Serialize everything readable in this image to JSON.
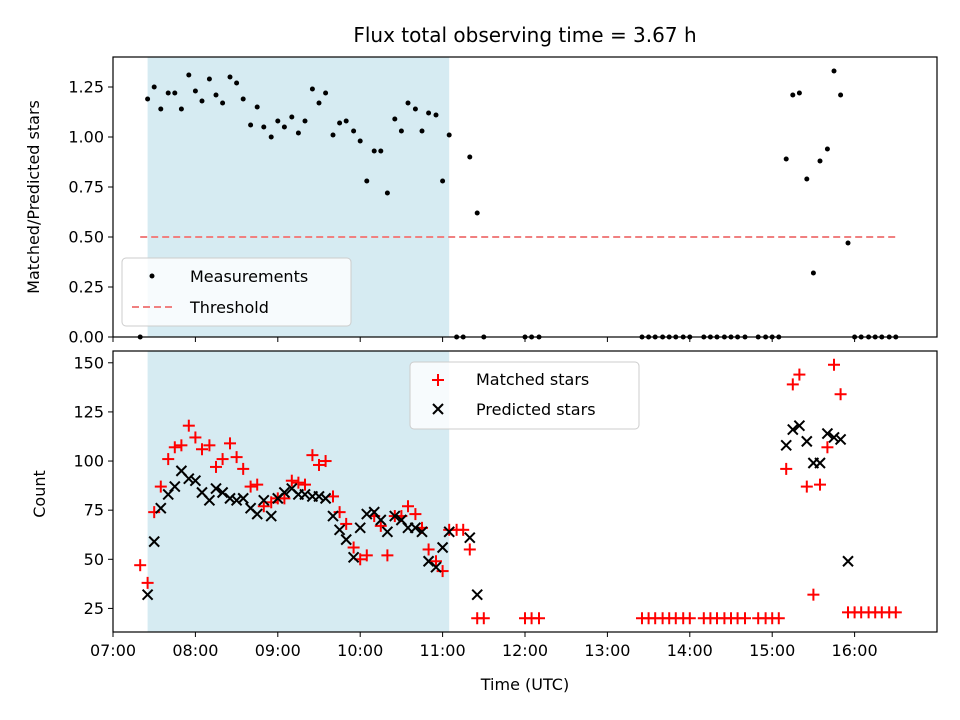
{
  "chart_data": [
    {
      "type": "scatter",
      "panel": "top",
      "title": "Flux total observing time = 3.67 h",
      "xlabel": "",
      "ylabel": "Matched/Predicted stars",
      "xlim": [
        7.0,
        17.0
      ],
      "ylim": [
        0.0,
        1.4
      ],
      "yticks": [
        0.0,
        0.25,
        0.5,
        0.75,
        1.0,
        1.25
      ],
      "ytick_labels": [
        "0.00",
        "0.25",
        "0.50",
        "0.75",
        "1.00",
        "1.25"
      ],
      "shaded_interval": [
        7.42,
        11.08
      ],
      "threshold": {
        "value": 0.5,
        "x_range": [
          7.33,
          16.5
        ],
        "color": "#f08080"
      },
      "legend": {
        "position": "lower-left",
        "entries": [
          "Measurements",
          "Threshold"
        ]
      },
      "series": [
        {
          "name": "Measurements",
          "color": "#000000",
          "x": [
            7.33,
            7.42,
            7.5,
            7.58,
            7.67,
            7.75,
            7.83,
            7.92,
            8.0,
            8.08,
            8.17,
            8.25,
            8.33,
            8.42,
            8.5,
            8.58,
            8.67,
            8.75,
            8.83,
            8.92,
            9.0,
            9.08,
            9.17,
            9.25,
            9.33,
            9.42,
            9.5,
            9.58,
            9.67,
            9.75,
            9.83,
            9.92,
            10.0,
            10.08,
            10.17,
            10.25,
            10.33,
            10.42,
            10.5,
            10.58,
            10.67,
            10.75,
            10.83,
            10.92,
            11.0,
            11.08,
            11.17,
            11.25,
            11.33,
            11.42,
            11.5,
            12.0,
            12.08,
            12.17,
            13.42,
            13.5,
            13.58,
            13.67,
            13.75,
            13.83,
            13.92,
            14.0,
            14.17,
            14.25,
            14.33,
            14.42,
            14.5,
            14.58,
            14.67,
            14.83,
            14.92,
            15.0,
            15.08,
            15.17,
            15.25,
            15.33,
            15.42,
            15.5,
            15.58,
            15.67,
            15.75,
            15.83,
            15.92,
            16.0,
            16.08,
            16.17,
            16.25,
            16.33,
            16.42,
            16.5
          ],
          "y": [
            0.0,
            1.19,
            1.25,
            1.14,
            1.22,
            1.22,
            1.14,
            1.31,
            1.23,
            1.18,
            1.29,
            1.21,
            1.17,
            1.3,
            1.27,
            1.19,
            1.06,
            1.15,
            1.05,
            1.0,
            1.08,
            1.05,
            1.1,
            1.02,
            1.08,
            1.24,
            1.17,
            1.22,
            1.01,
            1.07,
            1.08,
            1.03,
            0.98,
            0.78,
            0.93,
            0.93,
            0.72,
            1.09,
            1.03,
            1.17,
            1.14,
            1.03,
            1.12,
            1.11,
            0.78,
            1.01,
            0.0,
            0.0,
            0.9,
            0.62,
            0.0,
            0.0,
            0.0,
            0.0,
            0.0,
            0.0,
            0.0,
            0.0,
            0.0,
            0.0,
            0.0,
            0.0,
            0.0,
            0.0,
            0.0,
            0.0,
            0.0,
            0.0,
            0.0,
            0.0,
            0.0,
            0.0,
            0.0,
            0.89,
            1.21,
            1.22,
            0.79,
            0.32,
            0.88,
            0.94,
            1.33,
            1.21,
            0.47,
            0.0,
            0.0,
            0.0,
            0.0,
            0.0,
            0.0,
            0.0
          ]
        }
      ]
    },
    {
      "type": "scatter",
      "panel": "bottom",
      "xlabel": "Time (UTC)",
      "ylabel": "Count",
      "xlim": [
        7.0,
        17.0
      ],
      "ylim": [
        13,
        156
      ],
      "yticks": [
        25,
        50,
        75,
        100,
        125,
        150
      ],
      "ytick_labels": [
        "25",
        "50",
        "75",
        "100",
        "125",
        "150"
      ],
      "xticks": [
        7,
        8,
        9,
        10,
        11,
        12,
        13,
        14,
        15,
        16
      ],
      "xtick_labels": [
        "07:00",
        "08:00",
        "09:00",
        "10:00",
        "11:00",
        "12:00",
        "13:00",
        "14:00",
        "15:00",
        "16:00"
      ],
      "shaded_interval": [
        7.42,
        11.08
      ],
      "legend": {
        "position": "upper-center",
        "entries": [
          "Matched stars",
          "Predicted stars"
        ]
      },
      "series": [
        {
          "name": "Matched stars",
          "marker": "plus",
          "color": "#ff0000",
          "x": [
            7.33,
            7.42,
            7.5,
            7.58,
            7.67,
            7.75,
            7.83,
            7.92,
            8.0,
            8.08,
            8.17,
            8.25,
            8.33,
            8.42,
            8.5,
            8.58,
            8.67,
            8.75,
            8.83,
            8.92,
            9.0,
            9.08,
            9.17,
            9.25,
            9.33,
            9.42,
            9.5,
            9.58,
            9.67,
            9.75,
            9.83,
            9.92,
            10.0,
            10.08,
            10.17,
            10.25,
            10.33,
            10.42,
            10.5,
            10.58,
            10.67,
            10.75,
            10.83,
            10.92,
            11.0,
            11.08,
            11.17,
            11.25,
            11.33,
            11.42,
            11.5,
            12.0,
            12.08,
            12.17,
            13.42,
            13.5,
            13.58,
            13.67,
            13.75,
            13.83,
            13.92,
            14.0,
            14.17,
            14.25,
            14.33,
            14.42,
            14.5,
            14.58,
            14.67,
            14.83,
            14.92,
            15.0,
            15.08,
            15.17,
            15.25,
            15.33,
            15.42,
            15.5,
            15.58,
            15.67,
            15.75,
            15.83,
            15.92,
            16.0,
            16.08,
            16.17,
            16.25,
            16.33,
            16.42,
            16.5
          ],
          "y": [
            47,
            38,
            74,
            87,
            101,
            107,
            108,
            118,
            112,
            106,
            108,
            97,
            101,
            109,
            102,
            96,
            87,
            88,
            77,
            79,
            81,
            81,
            90,
            89,
            88,
            103,
            98,
            100,
            82,
            74,
            68,
            56,
            50,
            52,
            72,
            67,
            52,
            72,
            72,
            77,
            73,
            66,
            55,
            49,
            44,
            65,
            65,
            65,
            55,
            20,
            20,
            20,
            20,
            20,
            20,
            20,
            20,
            20,
            20,
            20,
            20,
            20,
            20,
            20,
            20,
            20,
            20,
            20,
            20,
            20,
            20,
            20,
            20,
            96,
            139,
            144,
            87,
            32,
            88,
            107,
            149,
            134,
            23,
            23,
            23,
            23,
            23,
            23,
            23,
            23
          ]
        },
        {
          "name": "Predicted stars",
          "marker": "x",
          "color": "#000000",
          "x": [
            7.42,
            7.5,
            7.58,
            7.67,
            7.75,
            7.83,
            7.92,
            8.0,
            8.08,
            8.17,
            8.25,
            8.33,
            8.42,
            8.5,
            8.58,
            8.67,
            8.75,
            8.83,
            8.92,
            9.0,
            9.08,
            9.17,
            9.25,
            9.33,
            9.42,
            9.5,
            9.58,
            9.67,
            9.75,
            9.83,
            9.92,
            10.0,
            10.08,
            10.17,
            10.25,
            10.33,
            10.42,
            10.5,
            10.58,
            10.67,
            10.75,
            10.83,
            10.92,
            11.0,
            11.08,
            11.33,
            11.42,
            15.17,
            15.25,
            15.33,
            15.42,
            15.5,
            15.58,
            15.67,
            15.75,
            15.83,
            15.92
          ],
          "y": [
            32,
            59,
            76,
            83,
            87,
            95,
            91,
            90,
            84,
            80,
            86,
            84,
            81,
            80,
            81,
            76,
            73,
            80,
            72,
            81,
            84,
            86,
            83,
            83,
            82,
            82,
            81,
            72,
            65,
            60,
            51,
            66,
            73,
            74,
            70,
            64,
            72,
            70,
            66,
            66,
            64,
            49,
            46,
            56,
            64,
            61,
            32,
            108,
            116,
            118,
            110,
            99,
            99,
            114,
            112,
            111,
            49
          ]
        }
      ]
    }
  ]
}
